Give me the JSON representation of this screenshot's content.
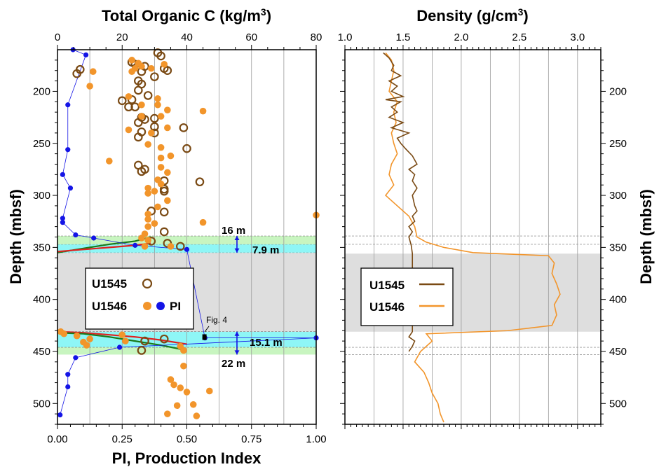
{
  "colors": {
    "u1545": "#7a4a14",
    "u1546": "#f2952b",
    "pi": "#1414e6",
    "band_cyan": "#8ef6f6",
    "band_green": "#c8f5c0",
    "band_gray": "#dedede",
    "fit_red": "#e02020",
    "fit_green": "#1a7a1a",
    "grid": "#9a9a9a"
  },
  "axis_labels": {
    "left_top": "Total Organic C (kg/m³)",
    "left_top_base": "Total Organic C (kg/m",
    "left_top_sup": "3",
    "left_top_end": ")",
    "left_bottom": "PI, Production Index",
    "depth_left": "Depth (mbsf)",
    "right_top_base": "Density (g/cm",
    "right_top_sup": "3",
    "right_top_end": ")",
    "depth_right": "Depth (mbsf)"
  },
  "legend_left": {
    "u1545": "U1545",
    "u1546": "U1546",
    "pi": "PI"
  },
  "legend_right": {
    "u1545": "U1545",
    "u1546": "U1546"
  },
  "annotations": {
    "top_thickness": "16 m",
    "top_inner": "7.9 m",
    "bottom_inner": "15.1 m",
    "bottom_thickness": "22 m",
    "fig_ref": "Fig. 4"
  },
  "chart_data": [
    {
      "type": "scatter",
      "panel": "left",
      "title": "",
      "top_axis": {
        "label": "Total Organic C (kg/m3)",
        "range": [
          0,
          80
        ],
        "ticks": [
          0,
          20,
          40,
          60,
          80
        ]
      },
      "bottom_axis": {
        "label": "PI, Production Index",
        "range": [
          0,
          1
        ],
        "ticks": [
          "0.00",
          "0.25",
          "0.50",
          "0.75",
          "1.00"
        ]
      },
      "y_axis": {
        "label": "Depth (mbsf)",
        "range": [
          160,
          520
        ],
        "reversed": true,
        "ticks": [
          200,
          250,
          300,
          350,
          400,
          450,
          500
        ]
      },
      "grid": "vertical",
      "legend": "center-left",
      "sill_intervals": [
        {
          "kind": "gray",
          "depth": [
            355,
            431
          ]
        },
        {
          "kind": "cyan",
          "depth": [
            347,
            355
          ]
        },
        {
          "kind": "green",
          "depth": [
            339,
            347
          ]
        },
        {
          "kind": "cyan",
          "depth": [
            431,
            446
          ]
        },
        {
          "kind": "green",
          "depth": [
            446,
            453
          ]
        }
      ],
      "series": [
        {
          "name": "U1545",
          "marker": "open-circle",
          "toc": [
            [
              31,
              163
            ],
            [
              32,
              166
            ],
            [
              23,
              172
            ],
            [
              24,
              174
            ],
            [
              27,
              176
            ],
            [
              33,
              178
            ],
            [
              7,
              179
            ],
            [
              34,
              180
            ],
            [
              6,
              183
            ],
            [
              26,
              181
            ],
            [
              30,
              186
            ],
            [
              25,
              190
            ],
            [
              26,
              193
            ],
            [
              25,
              199
            ],
            [
              28,
              204
            ],
            [
              23,
              208
            ],
            [
              20,
              209
            ],
            [
              22,
              215
            ],
            [
              24,
              215
            ],
            [
              26,
              225
            ],
            [
              30,
              226
            ],
            [
              27,
              227
            ],
            [
              25,
              230
            ],
            [
              30,
              234
            ],
            [
              39,
              235
            ],
            [
              26,
              239
            ],
            [
              30,
              240
            ],
            [
              25,
              244
            ],
            [
              40,
              255
            ],
            [
              25,
              271
            ],
            [
              27,
              275
            ],
            [
              26,
              277
            ],
            [
              33,
              286
            ],
            [
              33,
              294
            ],
            [
              33,
              296
            ],
            [
              44,
              287
            ],
            [
              29,
              315
            ],
            [
              33,
              316
            ],
            [
              33,
              335
            ],
            [
              34,
              346
            ],
            [
              38,
              349
            ],
            [
              29,
              344
            ],
            [
              27,
              440
            ],
            [
              33,
              438
            ],
            [
              26,
              449
            ]
          ]
        },
        {
          "name": "U1546",
          "marker": "filled-circle",
          "toc": [
            [
              23,
              170
            ],
            [
              23,
              181
            ],
            [
              26,
              176
            ],
            [
              29,
              178
            ],
            [
              11,
              181
            ],
            [
              10,
              195
            ],
            [
              24,
              178
            ],
            [
              25,
              173
            ],
            [
              33,
              174
            ],
            [
              22,
              205
            ],
            [
              31,
              207
            ],
            [
              26,
              213
            ],
            [
              31,
              213
            ],
            [
              34,
              218
            ],
            [
              45,
              219
            ],
            [
              26,
              224
            ],
            [
              32,
              224
            ],
            [
              22,
              237
            ],
            [
              29,
              240
            ],
            [
              34,
              235
            ],
            [
              28,
              251
            ],
            [
              32,
              254
            ],
            [
              32,
              264
            ],
            [
              35,
              262
            ],
            [
              32,
              273
            ],
            [
              34,
              278
            ],
            [
              16,
              267
            ],
            [
              31,
              285
            ],
            [
              32,
              289
            ],
            [
              28,
              293
            ],
            [
              28,
              298
            ],
            [
              30,
              296
            ],
            [
              34,
              305
            ],
            [
              31,
              311
            ],
            [
              28,
              318
            ],
            [
              28,
              323
            ],
            [
              30,
              327
            ],
            [
              45,
              326
            ],
            [
              80,
              319
            ],
            [
              28,
              330
            ],
            [
              27,
              337
            ],
            [
              26,
              341
            ],
            [
              28,
              343
            ],
            [
              27,
              349
            ],
            [
              35,
              349
            ],
            [
              1,
              431
            ],
            [
              2,
              433
            ],
            [
              6,
              435
            ],
            [
              10,
              438
            ],
            [
              9,
              444
            ],
            [
              8,
              441
            ],
            [
              20,
              434
            ],
            [
              21,
              440
            ],
            [
              38,
              445
            ],
            [
              39,
              449
            ],
            [
              39,
              464
            ],
            [
              35,
              477
            ],
            [
              36,
              482
            ],
            [
              38,
              485
            ],
            [
              40,
              489
            ],
            [
              47,
              488
            ],
            [
              37,
              502
            ],
            [
              34,
              510
            ],
            [
              43,
              512
            ],
            [
              42,
              501
            ]
          ]
        },
        {
          "name": "PI",
          "marker": "filled-circle-line",
          "pi_depth": [
            [
              0.06,
              160
            ],
            [
              0.11,
              165
            ],
            [
              0.04,
              213
            ],
            [
              0.04,
              256
            ],
            [
              0.02,
              280
            ],
            [
              0.05,
              293
            ],
            [
              0.02,
              322
            ],
            [
              0.02,
              326
            ],
            [
              0.07,
              338
            ],
            [
              0.14,
              341
            ],
            [
              0.3,
              348
            ],
            [
              0.5,
              352
            ],
            [
              0.57,
              437
            ],
            [
              1.0,
              437
            ],
            [
              0.24,
              446
            ],
            [
              0.07,
              456
            ],
            [
              0.04,
              472
            ],
            [
              0.04,
              484
            ],
            [
              0.01,
              511
            ]
          ]
        }
      ],
      "fit_curves": [
        {
          "color": "green",
          "points": [
            [
              0.0,
              355
            ],
            [
              0.1,
              351
            ],
            [
              0.2,
              347
            ],
            [
              0.3,
              344
            ],
            [
              0.36,
              340
            ]
          ]
        },
        {
          "color": "red",
          "points": [
            [
              0.0,
              354
            ],
            [
              0.1,
              352
            ],
            [
              0.2,
              350
            ],
            [
              0.3,
              348
            ],
            [
              0.36,
              346
            ]
          ]
        },
        {
          "color": "red",
          "points": [
            [
              0.0,
              431
            ],
            [
              0.1,
              432
            ],
            [
              0.2,
              434
            ],
            [
              0.3,
              436
            ],
            [
              0.4,
              439
            ],
            [
              0.5,
              443
            ]
          ]
        },
        {
          "color": "green",
          "points": [
            [
              0.0,
              432
            ],
            [
              0.1,
              433
            ],
            [
              0.2,
              436
            ],
            [
              0.3,
              440
            ],
            [
              0.4,
              444
            ],
            [
              0.48,
              448
            ]
          ]
        }
      ]
    },
    {
      "type": "line",
      "panel": "right",
      "title": "",
      "x_axis": {
        "label": "Density (g/cm3)",
        "range": [
          1.0,
          3.2
        ],
        "ticks": [
          "1.0",
          "1.5",
          "2.0",
          "2.5",
          "3.0"
        ]
      },
      "y_axis": {
        "label": "Depth (mbsf)",
        "range": [
          160,
          520
        ],
        "reversed": true,
        "ticks": [
          200,
          250,
          300,
          350,
          400,
          450,
          500
        ]
      },
      "grid": "vertical",
      "legend": "center-left",
      "sill_interval": [
        356,
        431
      ],
      "series": [
        {
          "name": "U1545",
          "depth_density": [
            [
              163,
              1.33
            ],
            [
              168,
              1.38
            ],
            [
              175,
              1.42
            ],
            [
              180,
              1.4
            ],
            [
              185,
              1.48
            ],
            [
              190,
              1.38
            ],
            [
              195,
              1.45
            ],
            [
              200,
              1.4
            ],
            [
              205,
              1.5
            ],
            [
              208,
              1.35
            ],
            [
              210,
              1.48
            ],
            [
              215,
              1.4
            ],
            [
              220,
              1.45
            ],
            [
              225,
              1.38
            ],
            [
              230,
              1.5
            ],
            [
              235,
              1.4
            ],
            [
              240,
              1.55
            ],
            [
              245,
              1.45
            ],
            [
              250,
              1.48
            ],
            [
              255,
              1.52
            ],
            [
              262,
              1.58
            ],
            [
              270,
              1.62
            ],
            [
              275,
              1.55
            ],
            [
              280,
              1.6
            ],
            [
              286,
              1.58
            ],
            [
              293,
              1.62
            ],
            [
              300,
              1.58
            ],
            [
              310,
              1.6
            ],
            [
              315,
              1.62
            ],
            [
              320,
              1.58
            ],
            [
              325,
              1.6
            ],
            [
              330,
              1.55
            ],
            [
              335,
              1.58
            ],
            [
              340,
              1.55
            ],
            [
              348,
              1.57
            ],
            [
              356,
              1.58
            ],
            [
              431,
              1.58
            ],
            [
              436,
              1.55
            ],
            [
              440,
              1.6
            ],
            [
              445,
              1.58
            ],
            [
              450,
              1.55
            ]
          ]
        },
        {
          "name": "U1546",
          "depth_density": [
            [
              163,
              1.35
            ],
            [
              170,
              1.4
            ],
            [
              180,
              1.42
            ],
            [
              190,
              1.4
            ],
            [
              200,
              1.38
            ],
            [
              210,
              1.45
            ],
            [
              220,
              1.42
            ],
            [
              230,
              1.44
            ],
            [
              240,
              1.4
            ],
            [
              250,
              1.42
            ],
            [
              260,
              1.45
            ],
            [
              270,
              1.4
            ],
            [
              280,
              1.38
            ],
            [
              290,
              1.42
            ],
            [
              300,
              1.35
            ],
            [
              310,
              1.45
            ],
            [
              320,
              1.55
            ],
            [
              330,
              1.6
            ],
            [
              340,
              1.62
            ],
            [
              345,
              1.7
            ],
            [
              350,
              1.85
            ],
            [
              355,
              2.1
            ],
            [
              358,
              2.75
            ],
            [
              365,
              2.8
            ],
            [
              375,
              2.78
            ],
            [
              385,
              2.82
            ],
            [
              395,
              2.85
            ],
            [
              405,
              2.8
            ],
            [
              415,
              2.82
            ],
            [
              425,
              2.78
            ],
            [
              430,
              2.4
            ],
            [
              433,
              1.7
            ],
            [
              440,
              1.75
            ],
            [
              450,
              1.65
            ],
            [
              460,
              1.6
            ],
            [
              470,
              1.68
            ],
            [
              480,
              1.72
            ],
            [
              490,
              1.75
            ],
            [
              500,
              1.8
            ],
            [
              510,
              1.82
            ],
            [
              518,
              1.85
            ]
          ]
        }
      ]
    }
  ]
}
